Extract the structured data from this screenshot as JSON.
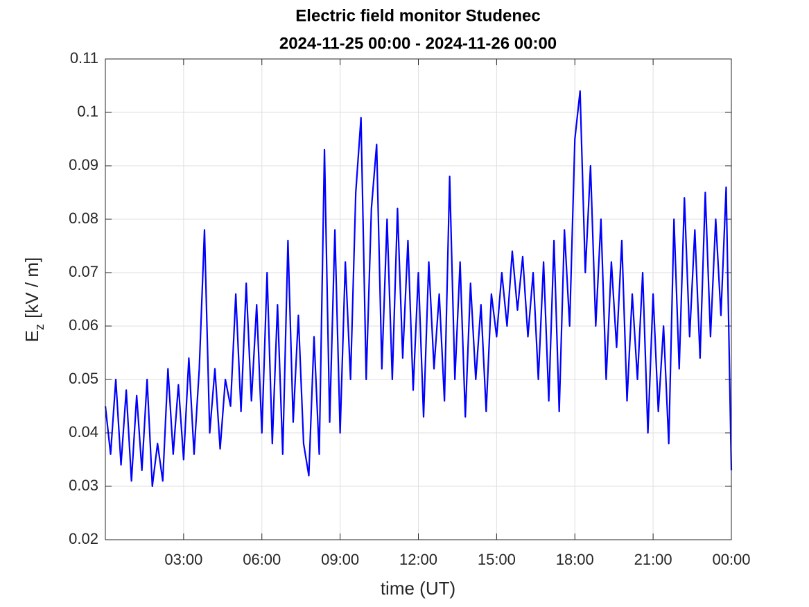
{
  "chart_data": {
    "type": "line",
    "title": "Electric field monitor Studenec",
    "subtitle": "2024-11-25 00:00 - 2024-11-26 00:00",
    "xlabel": "time (UT)",
    "ylabel": {
      "base": "E",
      "sub": "z",
      "rest": "[kV / m]"
    },
    "x": [
      0,
      0.2,
      0.4,
      0.6,
      0.8,
      1,
      1.2,
      1.4,
      1.6,
      1.8,
      2,
      2.2,
      2.4,
      2.6,
      2.8,
      3,
      3.2,
      3.4,
      3.6,
      3.8,
      4,
      4.2,
      4.4,
      4.6,
      4.8,
      5,
      5.2,
      5.4,
      5.6,
      5.8,
      6,
      6.2,
      6.4,
      6.6,
      6.8,
      7,
      7.2,
      7.4,
      7.6,
      7.8,
      8,
      8.2,
      8.4,
      8.6,
      8.8,
      9,
      9.2,
      9.4,
      9.6,
      9.8,
      10,
      10.2,
      10.4,
      10.6,
      10.8,
      11,
      11.2,
      11.4,
      11.6,
      11.8,
      12,
      12.2,
      12.4,
      12.6,
      12.8,
      13,
      13.2,
      13.4,
      13.6,
      13.8,
      14,
      14.2,
      14.4,
      14.6,
      14.8,
      15,
      15.2,
      15.4,
      15.6,
      15.8,
      16,
      16.2,
      16.4,
      16.6,
      16.8,
      17,
      17.2,
      17.4,
      17.6,
      17.8,
      18,
      18.2,
      18.4,
      18.6,
      18.8,
      19,
      19.2,
      19.4,
      19.6,
      19.8,
      20,
      20.2,
      20.4,
      20.6,
      20.8,
      21,
      21.2,
      21.4,
      21.6,
      21.8,
      22,
      22.2,
      22.4,
      22.6,
      22.8,
      23,
      23.2,
      23.4,
      23.6,
      23.8,
      24
    ],
    "series": [
      {
        "name": "Ez",
        "color": "#0000ff",
        "values": [
          0.045,
          0.036,
          0.05,
          0.034,
          0.048,
          0.031,
          0.047,
          0.033,
          0.05,
          0.03,
          0.038,
          0.031,
          0.052,
          0.036,
          0.049,
          0.035,
          0.054,
          0.036,
          0.052,
          0.078,
          0.04,
          0.052,
          0.037,
          0.05,
          0.045,
          0.066,
          0.044,
          0.068,
          0.046,
          0.064,
          0.04,
          0.07,
          0.038,
          0.064,
          0.036,
          0.076,
          0.042,
          0.062,
          0.038,
          0.032,
          0.058,
          0.036,
          0.093,
          0.042,
          0.078,
          0.04,
          0.072,
          0.05,
          0.085,
          0.099,
          0.05,
          0.082,
          0.094,
          0.052,
          0.08,
          0.05,
          0.082,
          0.054,
          0.076,
          0.048,
          0.07,
          0.043,
          0.072,
          0.052,
          0.066,
          0.046,
          0.088,
          0.05,
          0.072,
          0.043,
          0.068,
          0.05,
          0.064,
          0.044,
          0.066,
          0.058,
          0.07,
          0.06,
          0.074,
          0.063,
          0.073,
          0.058,
          0.07,
          0.05,
          0.072,
          0.046,
          0.076,
          0.044,
          0.078,
          0.06,
          0.095,
          0.104,
          0.07,
          0.09,
          0.06,
          0.08,
          0.05,
          0.072,
          0.056,
          0.076,
          0.046,
          0.066,
          0.05,
          0.07,
          0.04,
          0.066,
          0.044,
          0.06,
          0.038,
          0.08,
          0.052,
          0.084,
          0.058,
          0.078,
          0.054,
          0.085,
          0.058,
          0.08,
          0.062,
          0.086,
          0.033
        ]
      }
    ],
    "xlim": [
      0,
      24
    ],
    "xticks": [
      {
        "value": 3,
        "label": "03:00"
      },
      {
        "value": 6,
        "label": "06:00"
      },
      {
        "value": 9,
        "label": "09:00"
      },
      {
        "value": 12,
        "label": "12:00"
      },
      {
        "value": 15,
        "label": "15:00"
      },
      {
        "value": 18,
        "label": "18:00"
      },
      {
        "value": 21,
        "label": "21:00"
      },
      {
        "value": 24,
        "label": "00:00"
      }
    ],
    "ylim": [
      0.02,
      0.11
    ],
    "yticks": [
      0.02,
      0.03,
      0.04,
      0.05,
      0.06,
      0.07,
      0.08,
      0.09,
      0.1,
      0.11
    ],
    "grid": true
  }
}
